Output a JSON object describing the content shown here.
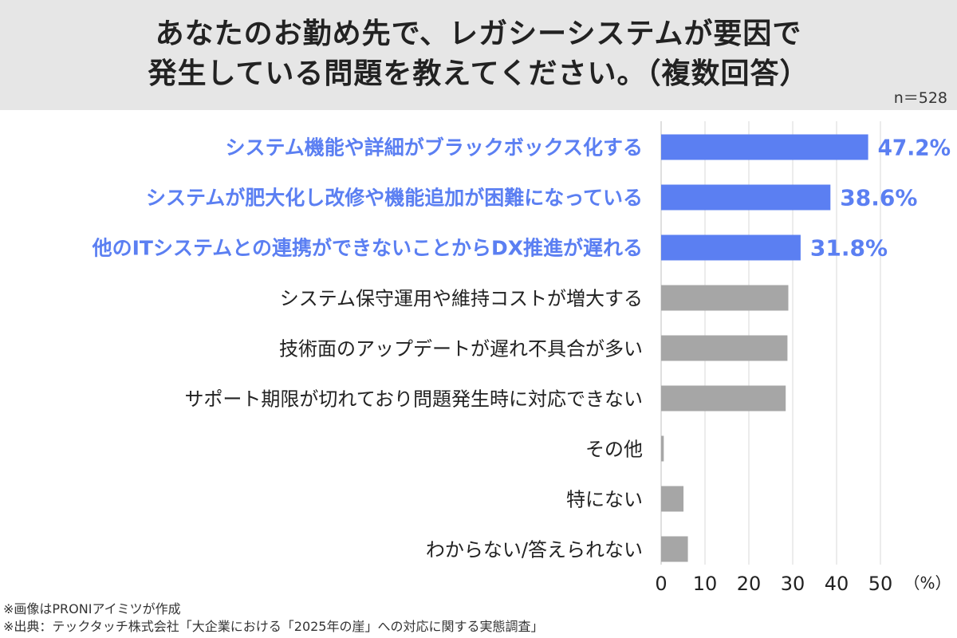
{
  "header": {
    "title_line1": "あなたのお勤め先で、レガシーシステムが要因で",
    "title_line2": "発生している問題を教えてください。（複数回答）",
    "sample_size": "n＝528"
  },
  "colors": {
    "highlight": "#5b7ff2",
    "normal_bar": "#a6a6a6",
    "normal_text": "#222222",
    "grid": "#d9d9d9"
  },
  "chart_data": {
    "type": "bar",
    "orientation": "horizontal",
    "categories": [
      "システム機能や詳細がブラックボックス化する",
      "システムが肥大化し改修や機能追加が困難になっている",
      "他のITシステムとの連携ができないことからDX推進が遅れる",
      "システム保守運用や維持コストが増大する",
      "技術面のアップデートが遅れ不具合が多い",
      "サポート期限が切れており問題発生時に対応できない",
      "その他",
      "特にない",
      "わからない/答えられない"
    ],
    "values": [
      47.2,
      38.6,
      31.8,
      29.0,
      28.8,
      28.4,
      0.6,
      5.1,
      6.1
    ],
    "highlighted": [
      true,
      true,
      true,
      false,
      false,
      false,
      false,
      false,
      false
    ],
    "value_labels": [
      "47.2%",
      "38.6%",
      "31.8%",
      "",
      "",
      "",
      "",
      "",
      ""
    ],
    "xlim": [
      0,
      50
    ],
    "xticks": [
      "0",
      "10",
      "20",
      "30",
      "40",
      "50"
    ],
    "unit_label": "（%）",
    "grid": true
  },
  "footnotes": [
    "※画像はPRONIアイミツが作成",
    "※出典：テックタッチ株式会社「大企業における「2025年の崖」への対応に関する実態調査」"
  ]
}
